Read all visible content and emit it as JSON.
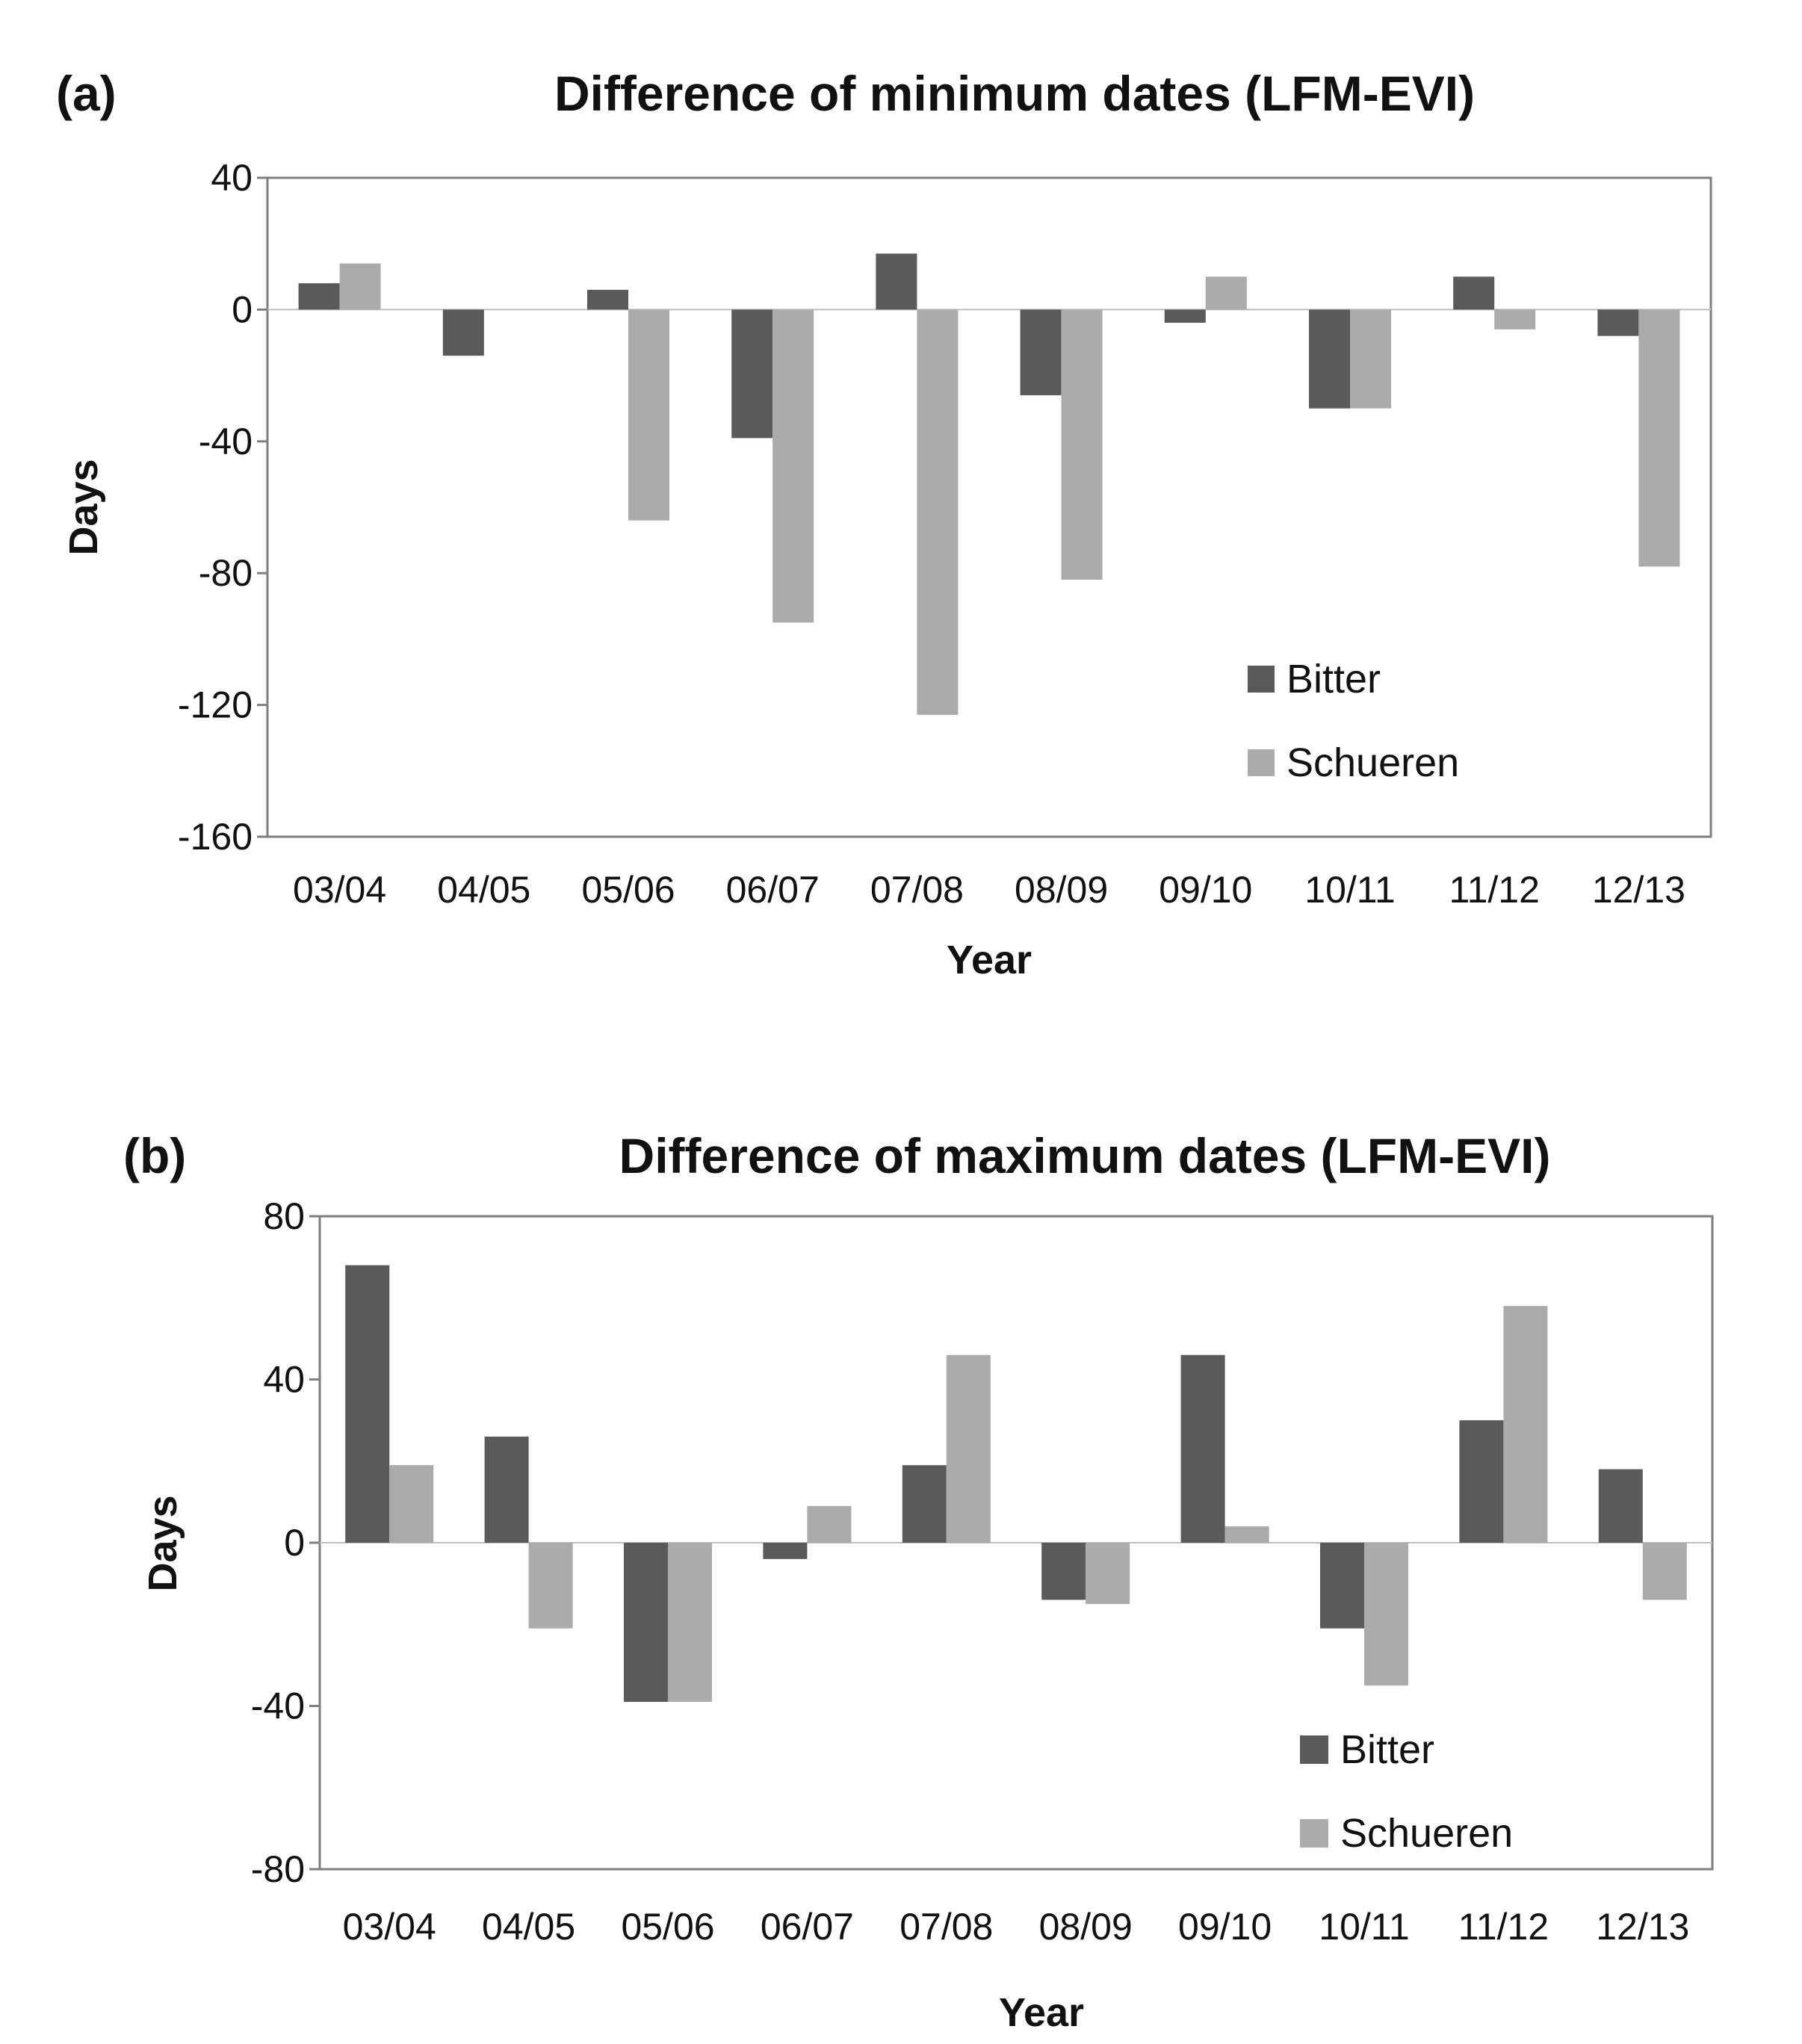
{
  "figure": {
    "colors": {
      "Bitter": "#5a5a5a",
      "Schueren": "#ababab",
      "axis": "#7f7f7f",
      "baseline": "#bfbfbf",
      "text": "#111111"
    }
  },
  "chart_data": [
    {
      "type": "bar",
      "panel_label": "(a)",
      "title": "Difference of minimum dates (LFM-EVI)",
      "xlabel": "Year",
      "ylabel": "Days",
      "ylim": [
        -160,
        40
      ],
      "yticks": [
        40,
        0,
        -40,
        -80,
        -120,
        -160
      ],
      "ytick_labels": [
        "40",
        "0",
        "-40",
        "-80",
        "-120",
        "-160"
      ],
      "grid": false,
      "legend_position": "bottom-right",
      "categories": [
        "03/04",
        "04/05",
        "05/06",
        "06/07",
        "07/08",
        "08/09",
        "09/10",
        "10/11",
        "11/12",
        "12/13"
      ],
      "series": [
        {
          "name": "Bitter",
          "values": [
            8,
            -14,
            6,
            -39,
            17,
            -26,
            -4,
            -30,
            10,
            -8
          ]
        },
        {
          "name": "Schueren",
          "values": [
            14,
            0,
            -64,
            -95,
            -123,
            -82,
            10,
            -30,
            -6,
            -78
          ]
        }
      ]
    },
    {
      "type": "bar",
      "panel_label": "(b)",
      "title": "Difference of maximum dates (LFM-EVI)",
      "xlabel": "Year",
      "ylabel": "Days",
      "ylim": [
        -80,
        80
      ],
      "yticks": [
        80,
        40,
        0,
        -40,
        -80
      ],
      "ytick_labels": [
        "80",
        "40",
        "0",
        "-40",
        "-80"
      ],
      "grid": false,
      "legend_position": "bottom-right",
      "categories": [
        "03/04",
        "04/05",
        "05/06",
        "06/07",
        "07/08",
        "08/09",
        "09/10",
        "10/11",
        "11/12",
        "12/13"
      ],
      "series": [
        {
          "name": "Bitter",
          "values": [
            68,
            26,
            -39,
            -4,
            19,
            -14,
            46,
            -21,
            30,
            18
          ]
        },
        {
          "name": "Schueren",
          "values": [
            19,
            -21,
            -39,
            9,
            46,
            -15,
            4,
            -35,
            58,
            -14
          ]
        }
      ]
    }
  ]
}
